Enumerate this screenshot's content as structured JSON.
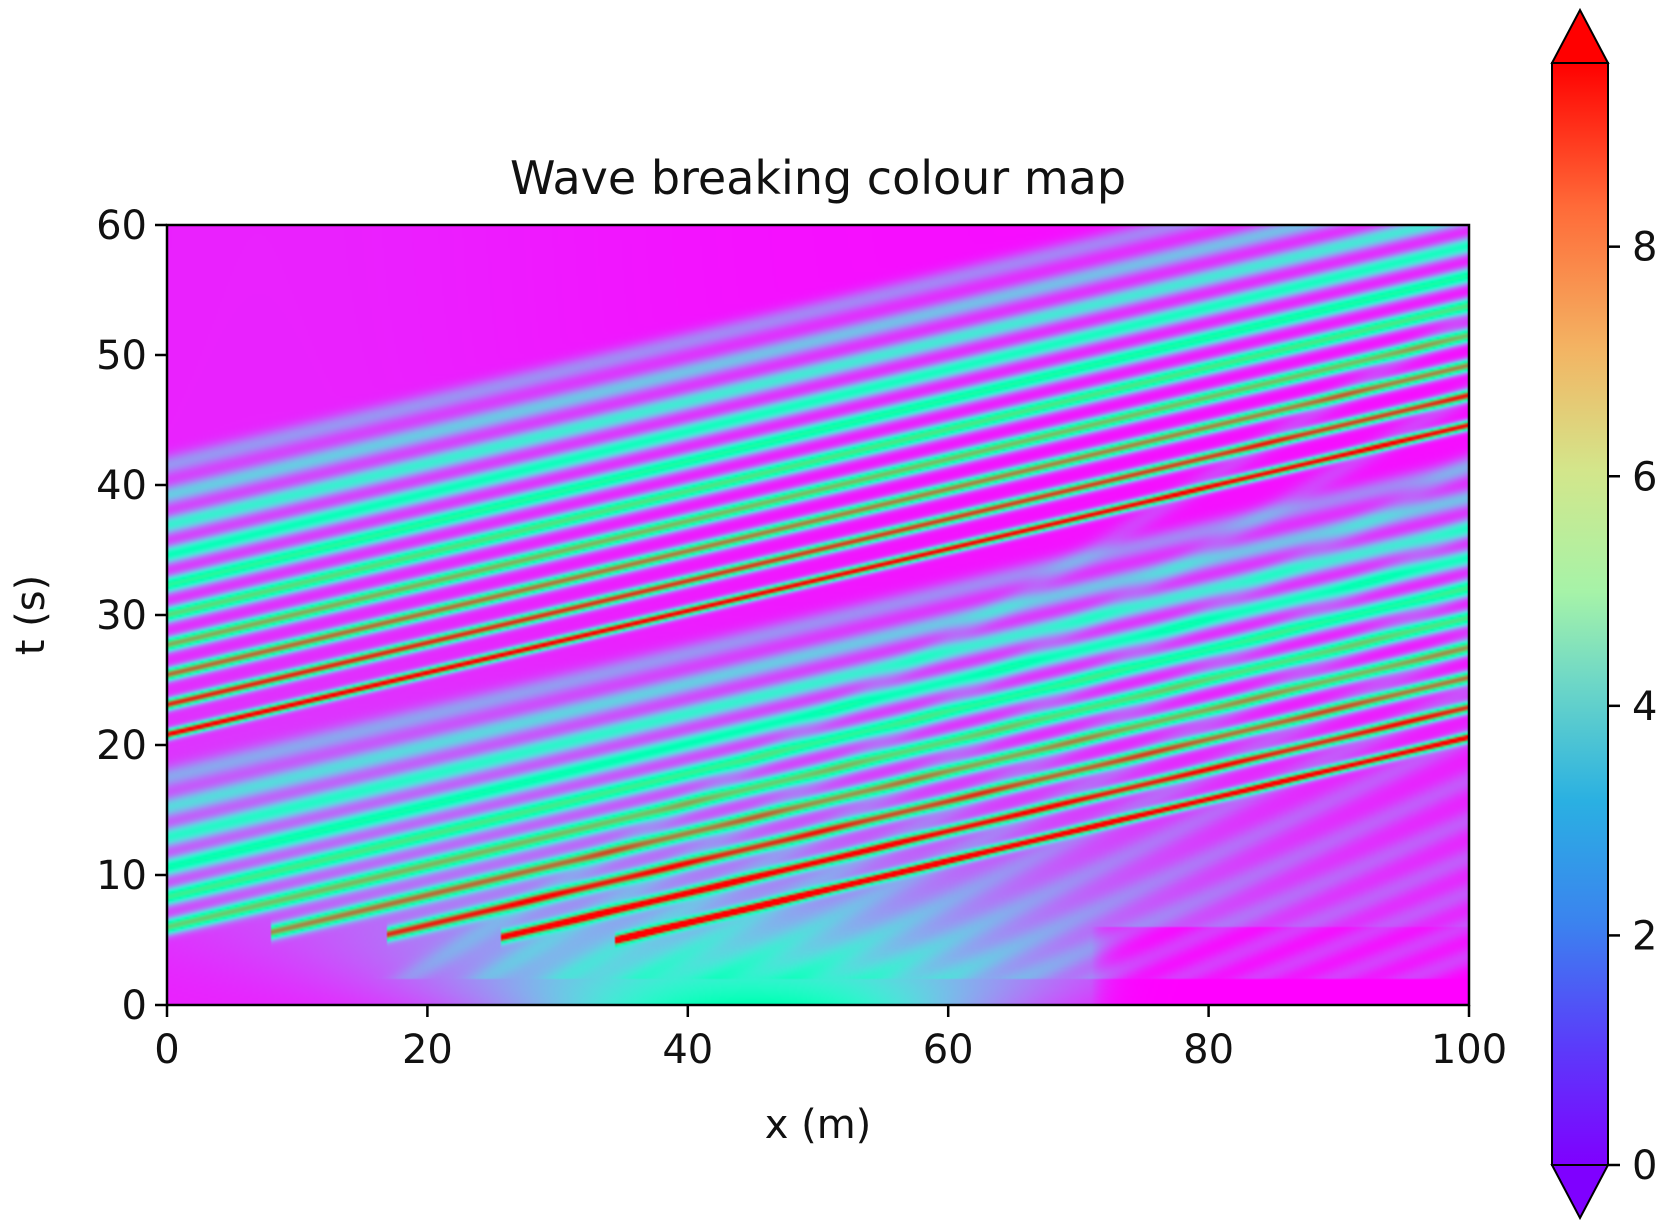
{
  "chart_data": {
    "type": "heatmap",
    "title": "Wave breaking colour map",
    "xlabel": "x (m)",
    "ylabel": "t (s)",
    "xlim": [
      0,
      100
    ],
    "ylim": [
      0,
      60
    ],
    "x_ticks": [
      "0",
      "20",
      "40",
      "60",
      "80",
      "100"
    ],
    "y_ticks": [
      "0",
      "10",
      "20",
      "30",
      "40",
      "50",
      "60"
    ],
    "colorbar": {
      "range": [
        0,
        9.6
      ],
      "ticks": [
        "0",
        "2",
        "4",
        "6",
        "8"
      ],
      "colormap": "rainbow",
      "extend": "both"
    },
    "features": {
      "initial_hump": {
        "center_x": 45,
        "peak_value": 4.7
      },
      "crests": 10,
      "crest_speed_mps": 4.2,
      "first_crest_at_x0_t_s": 20.8,
      "first_crest_at_x100_t_s": 20.6,
      "crest_spacing_t_s": 2.3
    }
  }
}
